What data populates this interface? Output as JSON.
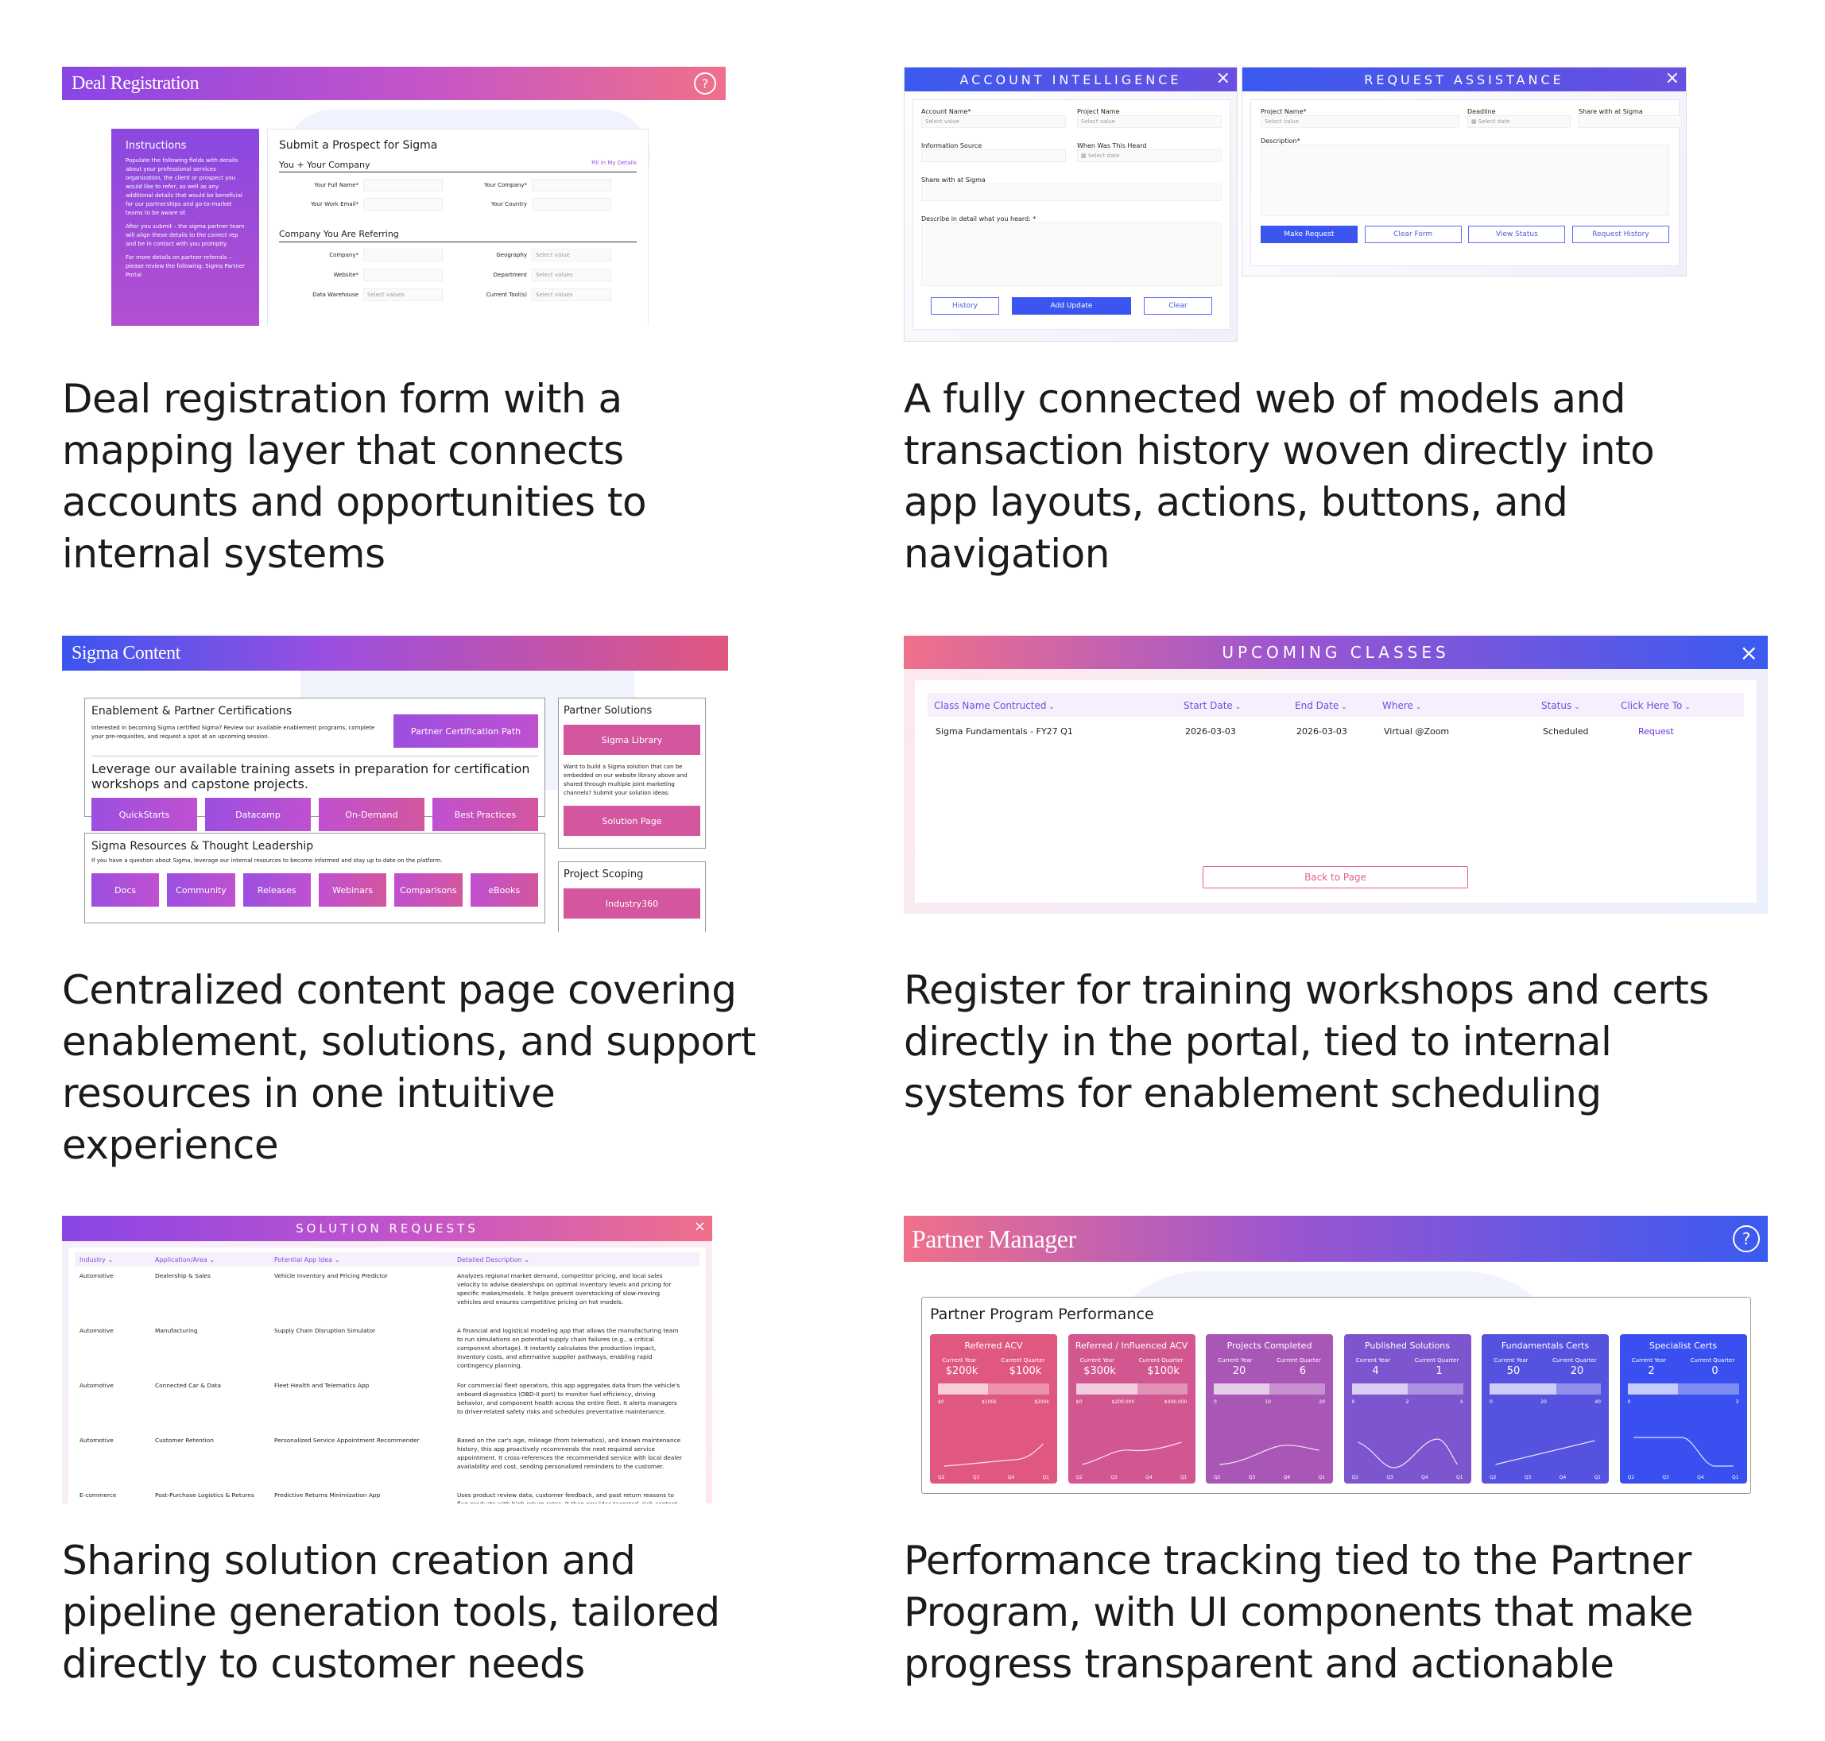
{
  "captions": {
    "c1": "Deal registration form with a mapping layer that connects accounts and opportunities to internal systems",
    "c2": "A fully connected web of models and transaction history woven directly into app layouts, actions, buttons, and navigation",
    "c3": "Centralized content page covering enablement, solutions, and support resources in one intuitive experience",
    "c4": "Register for training workshops and certs directly in the portal, tied to internal systems for enablement scheduling",
    "c5": "Sharing solution creation and pipeline generation tools, tailored directly to customer needs",
    "c6": "Performance tracking tied to the Partner Program, with UI components that make progress transparent and actionable"
  },
  "deal": {
    "title": "Deal Registration",
    "instructions_title": "Instructions",
    "instructions_p1": "Populate the following fields with details about your professional services organization, the client or prospect you would like to refer, as well as any additional details that would be beneficial for our partnerships and go-to-market teams to be aware of.",
    "instructions_p2": "After you submit – the sigma partner team will align these details to the correct rep and be in contact with you promptly.",
    "instructions_p3": "For more details on partner referrals – please review the following: Sigma Partner Portal",
    "form_title": "Submit a Prospect for Sigma",
    "section1": "You + Your Company",
    "fill_link": "Fill in My Details",
    "full_name": "Your Full Name*",
    "company": "Your Company*",
    "work_email": "Your Work Email*",
    "country": "Your Country",
    "section2": "Company You Are Referring",
    "ref_company": "Company*",
    "geography": "Geography",
    "website": "Website*",
    "department": "Department",
    "data_warehouse": "Data Warehouse",
    "current_tools": "Current Tool(s)",
    "select_value": "Select value",
    "select_values": "Select values"
  },
  "account": {
    "title": "ACCOUNT INTELLIGENCE",
    "account_name": "Account Name*",
    "project_name": "Project Name",
    "select_value": "Select value",
    "info_source": "Information Source",
    "when_heard": "When Was This Heard",
    "select_date": "Select date",
    "share": "Share with at Sigma",
    "describe": "Describe in detail what you heard: *",
    "history": "History",
    "add_update": "Add Update",
    "clear": "Clear"
  },
  "assist": {
    "title": "REQUEST ASSISTANCE",
    "project_name": "Project Name*",
    "deadline": "Deadline",
    "share": "Share with at Sigma",
    "select_value": "Select value",
    "select_date": "Select date",
    "description": "Description*",
    "make_request": "Make Request",
    "clear_form": "Clear Form",
    "view_status": "View Status",
    "request_history": "Request History"
  },
  "content": {
    "title": "Sigma Content",
    "enable_title": "Enablement & Partner Certifications",
    "enable_text": "Interested in becoming Sigma certified Sigma? Review our available enablement programs, complete your pre-requisites, and request a spot at an upcoming session.",
    "cert_path": "Partner Certification Path",
    "leverage_text": "Leverage our available training assets in preparation for certification workshops and capstone projects.",
    "training": [
      "QuickStarts",
      "Datacamp",
      "On-Demand",
      "Best Practices"
    ],
    "res_title": "Sigma Resources & Thought Leadership",
    "res_text": "If you have a question about Sigma, leverage our internal resources to become informed and stay up to date on the platform.",
    "resources": [
      "Docs",
      "Community",
      "Releases",
      "Webinars",
      "Comparisons",
      "eBooks"
    ],
    "sol_title": "Partner Solutions",
    "sigma_library": "Sigma Library",
    "sol_text": "Want to build a Sigma solution that can be embedded on our website library above and shared through multiple joint marketing channels? Submit your solution ideas:",
    "solution_page": "Solution Page",
    "scope_title": "Project Scoping",
    "industry": "Industry360"
  },
  "classes": {
    "title": "UPCOMING CLASSES",
    "headers": [
      "Class Name Contructed",
      "Start Date",
      "End Date",
      "Where",
      "Status",
      "Click Here To"
    ],
    "row": [
      "Sigma Fundamentals - FY27 Q1",
      "2026-03-03",
      "2026-03-03",
      "Virtual @Zoom",
      "Scheduled",
      "Request"
    ],
    "back": "Back to Page"
  },
  "solutions": {
    "title": "SOLUTION REQUESTS",
    "headers": [
      "Industry",
      "Application/Area",
      "Potential App Idea",
      "Detailed Description"
    ],
    "rows": [
      [
        "Automotive",
        "Dealership & Sales",
        "Vehicle Inventory and Pricing Predictor",
        "Analyzes regional market demand, competitor pricing, and local sales velocity to advise dealerships on optimal inventory levels and pricing for specific makes/models. It helps prevent overstocking of slow-moving vehicles and ensures competitive pricing on hot models."
      ],
      [
        "Automotive",
        "Manufacturing",
        "Supply Chain Disruption Simulator",
        "A financial and logistical modeling app that allows the manufacturing team to run simulations on potential supply chain failures (e.g., a critical component shortage). It instantly calculates the production impact, inventory costs, and alternative supplier pathways, enabling rapid contingency planning."
      ],
      [
        "Automotive",
        "Connected Car & Data",
        "Fleet Health and Telematics App",
        "For commercial fleet operators, this app aggregates data from the vehicle's onboard diagnostics (OBD-II port) to monitor fuel efficiency, driving behavior, and component health across the entire fleet. It alerts managers to driver-related safety risks and schedules preventative maintenance."
      ],
      [
        "Automotive",
        "Customer Retention",
        "Personalized Service Appointment Recommender",
        "Based on the car's age, mileage (from telematics), and known maintenance history, this app proactively recommends the next required service appointment. It cross-references the recommended service with local dealer availability and cost, sending personalized reminders to the customer."
      ],
      [
        "E-commerce",
        "Post-Purchase Logistics & Returns",
        "Predictive Returns Minimization App",
        "Uses product review data, customer feedback, and past return reasons to flag products with high return rates. It then provides targeted, rich content"
      ]
    ]
  },
  "partner": {
    "title": "Partner Manager",
    "panel_title": "Partner Program Performance",
    "current_year": "Current Year",
    "current_quarter": "Current Quarter",
    "cards": [
      {
        "name": "Referred ACV",
        "cy": "$200k",
        "cq": "$100k",
        "ticks": [
          "$0",
          "$100k",
          "$200k"
        ],
        "quarters": [
          "Q2",
          "Q3",
          "Q4",
          "Q1"
        ],
        "color": "#e0577f"
      },
      {
        "name": "Referred / Influenced ACV",
        "cy": "$300k",
        "cq": "$100k",
        "ticks": [
          "$0",
          "$200,000",
          "$400,000"
        ],
        "quarters": [
          "Q2",
          "Q3",
          "Q4",
          "Q1"
        ],
        "color": "#d2568f"
      },
      {
        "name": "Projects Completed",
        "cy": "20",
        "cq": "6",
        "ticks": [
          "0",
          "10",
          "20"
        ],
        "quarters": [
          "Q2",
          "Q3",
          "Q4",
          "Q1"
        ],
        "color": "#a957b6"
      },
      {
        "name": "Published Solutions",
        "cy": "4",
        "cq": "1",
        "ticks": [
          "0",
          "2",
          "4"
        ],
        "quarters": [
          "Q2",
          "Q3",
          "Q4",
          "Q1"
        ],
        "color": "#7d56cf"
      },
      {
        "name": "Fundamentals Certs",
        "cy": "50",
        "cq": "20",
        "ticks": [
          "0",
          "20",
          "40"
        ],
        "quarters": [
          "Q2",
          "Q3",
          "Q4",
          "Q1"
        ],
        "color": "#5552e0"
      },
      {
        "name": "Specialist Certs",
        "cy": "2",
        "cq": "0",
        "ticks": [
          "0",
          "3"
        ],
        "quarters": [
          "Q2",
          "Q3",
          "Q4",
          "Q1"
        ],
        "color": "#3a4ff0"
      }
    ]
  }
}
